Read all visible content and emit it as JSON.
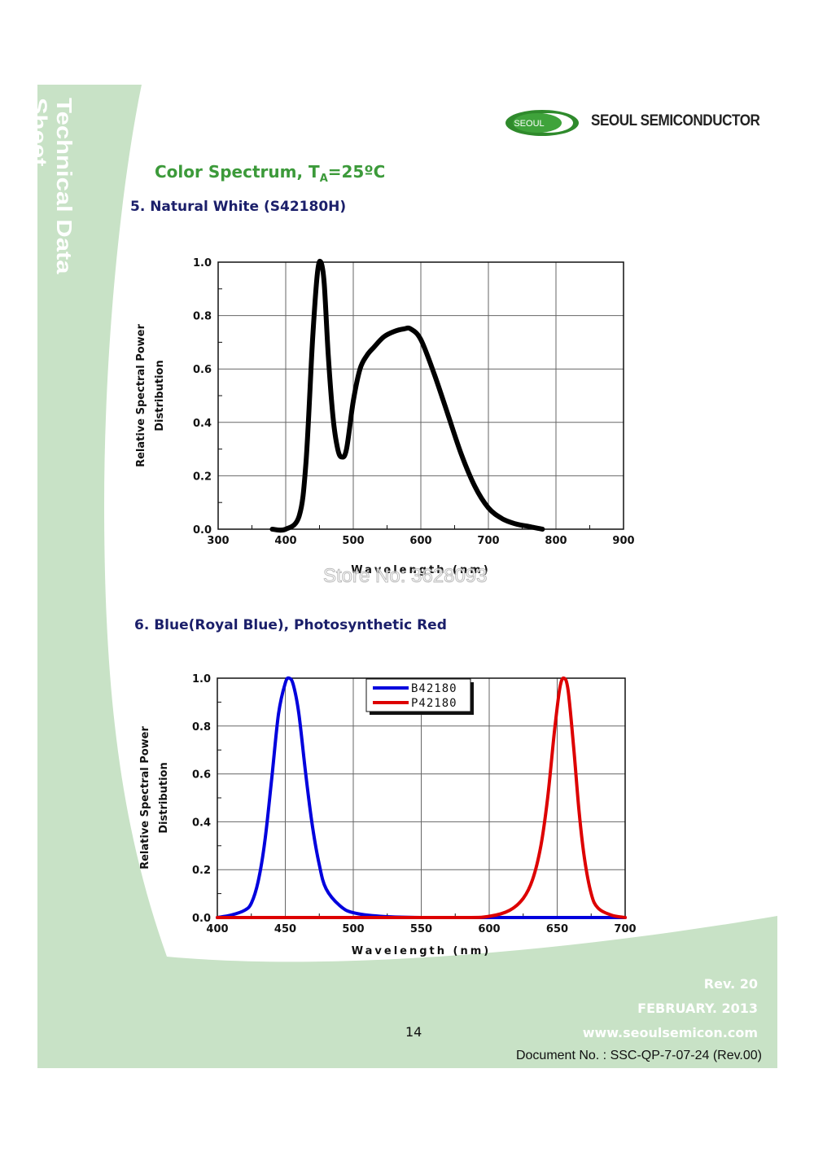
{
  "sidebar": {
    "title": "Technical Data Sheet"
  },
  "brand": {
    "logo_text": "SEOUL",
    "company": "SEOUL SEMICONDUCTOR",
    "accent": "#3c9a3a",
    "band_color": "#c8e2c6"
  },
  "page": {
    "title_main": "Color Spectrum, T",
    "title_sub": "A",
    "title_end": "=25ºC",
    "section5": "5. Natural White (S42180H)",
    "section6": "6. Blue(Royal Blue), Photosynthetic Red",
    "watermark": "Store No: 3628093"
  },
  "footer": {
    "rev": "Rev. 20",
    "date": "FEBRUARY. 2013",
    "website": "www.seoulsemicon.com",
    "page_number": "14",
    "document": "Document No. : SSC-QP-7-07-24 (Rev.00)"
  },
  "chart_data": [
    {
      "type": "line",
      "title": "5. Natural White (S42180H)",
      "xlabel": "Wavelength (nm)",
      "ylabel_line1": "Relative Spectral Power",
      "ylabel_line2": "Distribution",
      "xlim": [
        300,
        900
      ],
      "ylim": [
        0,
        1.0
      ],
      "xticks": [
        300,
        400,
        500,
        600,
        700,
        800,
        900
      ],
      "yticks": [
        0.0,
        0.2,
        0.4,
        0.6,
        0.8,
        1.0
      ],
      "xtick_labels": [
        "300",
        "400",
        "500",
        "600",
        "700",
        "800",
        "900"
      ],
      "ytick_labels": [
        "0.0",
        "0.2",
        "0.4",
        "0.6",
        "0.8",
        "1.0"
      ],
      "grid": true,
      "series": [
        {
          "name": "S42180H",
          "color": "#000000",
          "x": [
            380,
            400,
            420,
            430,
            440,
            447,
            452,
            457,
            463,
            470,
            477,
            483,
            490,
            500,
            510,
            520,
            530,
            545,
            560,
            575,
            585,
            600,
            620,
            640,
            660,
            680,
            700,
            720,
            740,
            760,
            780
          ],
          "y": [
            0.0,
            0.0,
            0.05,
            0.25,
            0.72,
            0.96,
            1.0,
            0.92,
            0.65,
            0.42,
            0.3,
            0.27,
            0.3,
            0.48,
            0.6,
            0.65,
            0.68,
            0.72,
            0.74,
            0.75,
            0.75,
            0.71,
            0.58,
            0.43,
            0.28,
            0.16,
            0.08,
            0.04,
            0.02,
            0.01,
            0.0
          ]
        }
      ]
    },
    {
      "type": "line",
      "title": "6. Blue(Royal Blue), Photosynthetic Red",
      "xlabel": "Wavelength (nm)",
      "ylabel_line1": "Relative Spectral Power",
      "ylabel_line2": "Distribution",
      "xlim": [
        400,
        700
      ],
      "ylim": [
        0,
        1.0
      ],
      "xticks": [
        400,
        450,
        500,
        550,
        600,
        650,
        700
      ],
      "yticks": [
        0.0,
        0.2,
        0.4,
        0.6,
        0.8,
        1.0
      ],
      "xtick_labels": [
        "400",
        "450",
        "500",
        "550",
        "600",
        "650",
        "700"
      ],
      "ytick_labels": [
        "0.0",
        "0.2",
        "0.4",
        "0.6",
        "0.8",
        "1.0"
      ],
      "grid": true,
      "legend": "top-center",
      "series": [
        {
          "name": "B42180",
          "color": "#0000dd",
          "x": [
            400,
            410,
            420,
            425,
            430,
            435,
            440,
            445,
            450,
            453,
            456,
            460,
            465,
            470,
            475,
            480,
            490,
            500,
            520,
            550,
            600,
            650,
            700
          ],
          "y": [
            0.0,
            0.01,
            0.03,
            0.06,
            0.15,
            0.32,
            0.58,
            0.85,
            0.98,
            1.0,
            0.97,
            0.85,
            0.6,
            0.38,
            0.22,
            0.12,
            0.05,
            0.02,
            0.005,
            0.0,
            0.0,
            0.0,
            0.0
          ]
        },
        {
          "name": "P42180",
          "color": "#dd0000",
          "x": [
            400,
            500,
            580,
            600,
            615,
            625,
            632,
            638,
            643,
            648,
            652,
            655,
            658,
            662,
            666,
            670,
            675,
            680,
            690,
            700
          ],
          "y": [
            0.0,
            0.0,
            0.0,
            0.005,
            0.03,
            0.08,
            0.16,
            0.3,
            0.5,
            0.78,
            0.96,
            1.0,
            0.95,
            0.72,
            0.45,
            0.25,
            0.1,
            0.04,
            0.01,
            0.0
          ]
        }
      ]
    }
  ]
}
